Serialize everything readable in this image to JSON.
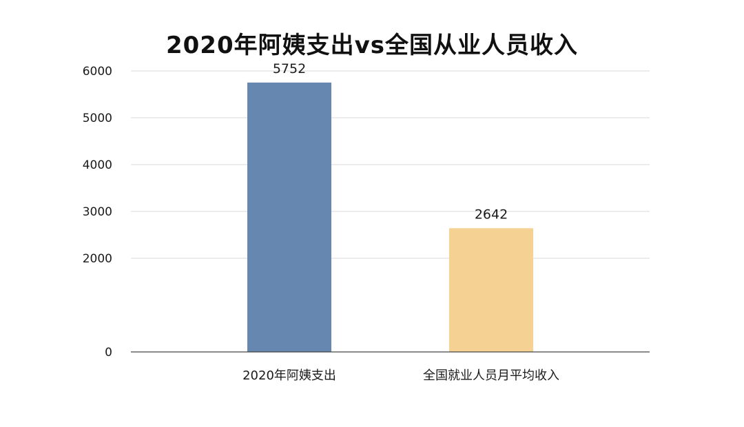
{
  "chart_data": {
    "type": "bar",
    "title": "2020年阿姨支出vs全国从业人员收入",
    "xlabel": "",
    "ylabel": "",
    "categories": [
      "2020年阿姨支出",
      "全国就业人员月平均收入"
    ],
    "values": [
      5752,
      2642
    ],
    "data_labels": [
      "5752",
      "2642"
    ],
    "colors": [
      "#6688b0",
      "#f5d294"
    ],
    "ylim": [
      0,
      6000
    ],
    "yticks": [
      0,
      2000,
      3000,
      4000,
      5000,
      6000
    ],
    "ytick_labels": [
      "0",
      "2000",
      "3000",
      "4000",
      "5000",
      "6000"
    ],
    "grid": true,
    "legend": "none"
  }
}
